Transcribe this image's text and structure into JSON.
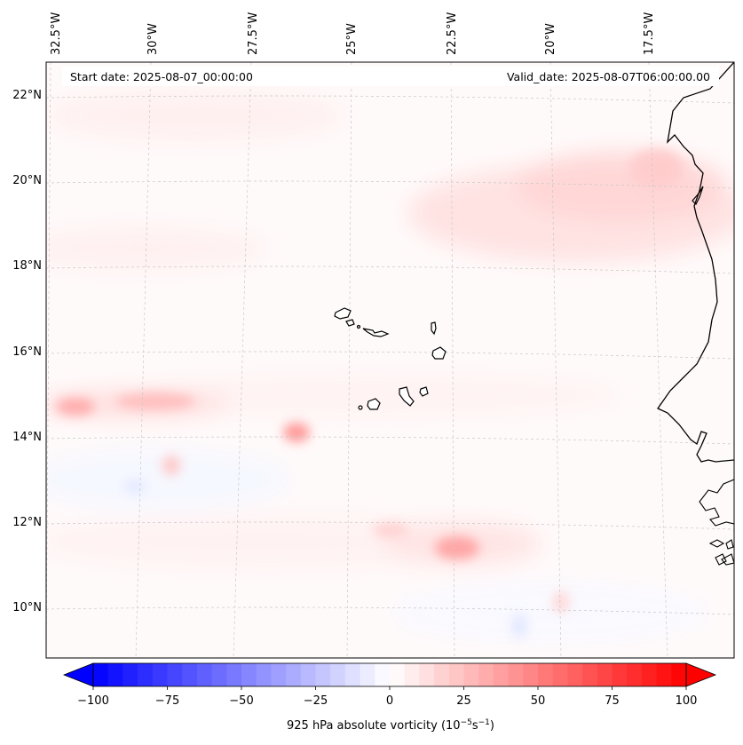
{
  "header": {
    "start_date": "Start date: 2025-08-07_00:00:00",
    "valid_date": "Valid_date: 2025-08-07T06:00:00.00"
  },
  "lon_labels": [
    "32.5°W",
    "30°W",
    "27.5°W",
    "25°W",
    "22.5°W",
    "20°W",
    "17.5°W"
  ],
  "lat_labels": [
    "22°N",
    "20°N",
    "18°N",
    "16°N",
    "14°N",
    "12°N",
    "10°N"
  ],
  "colorbar": {
    "min": -100,
    "max": 100,
    "ticks": [
      "−100",
      "−75",
      "−50",
      "−25",
      "0",
      "25",
      "50",
      "75",
      "100"
    ],
    "label": "925 hPa absolute vorticity (10",
    "label_exp1": "−5",
    "label_mid": "s",
    "label_exp2": "−1",
    "label_end": ")",
    "colors": {
      "neg": "#0000ff",
      "zero": "#ffffff",
      "pos": "#ff0000"
    }
  },
  "field": {
    "background": "#fffafa",
    "features": [
      {
        "name": "vort-max-west",
        "lat": 14.7,
        "lon": -32.0,
        "value": 30
      },
      {
        "name": "vort-max-30w",
        "lat": 14.8,
        "lon": -29.7,
        "value": 22
      },
      {
        "name": "vort-max-26w",
        "lat": 14.1,
        "lon": -26.2,
        "value": 38
      },
      {
        "name": "vort-max-28w",
        "lat": 13.3,
        "lon": -28.7,
        "value": 15
      },
      {
        "name": "vort-max-22w",
        "lat": 11.5,
        "lon": -22.3,
        "value": 30
      },
      {
        "name": "vort-max-coast",
        "lat": 20.0,
        "lon": -17.5,
        "value": 15
      },
      {
        "name": "vort-min-west",
        "lat": 12.8,
        "lon": -30.0,
        "value": -10
      },
      {
        "name": "vort-min-south",
        "lat": 10.3,
        "lon": -20.7,
        "value": -10
      }
    ]
  },
  "places": {
    "islands": [
      "Santo Antão",
      "São Vicente",
      "Santa Luzia",
      "São Nicolau",
      "Sal",
      "Boa Vista",
      "Maio",
      "Santiago",
      "Fogo",
      "Brava"
    ],
    "coast": "West Africa coastline"
  }
}
